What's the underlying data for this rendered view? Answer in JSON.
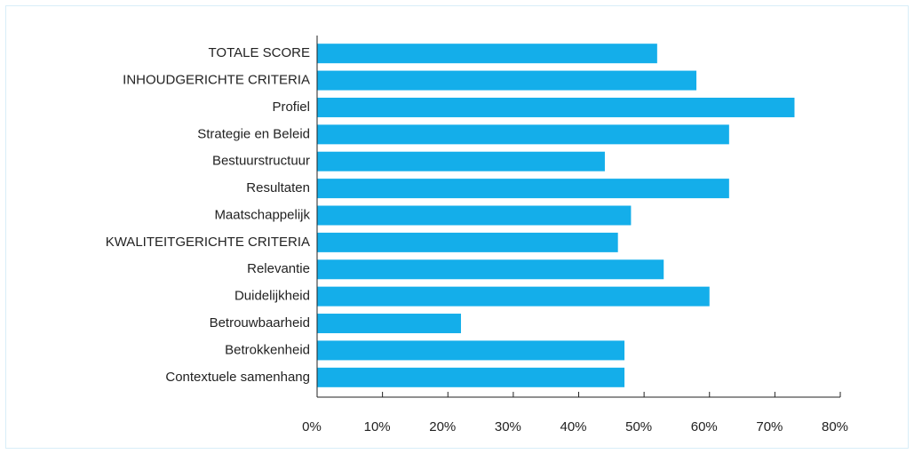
{
  "chart_data": {
    "type": "bar",
    "orientation": "horizontal",
    "categories": [
      "TOTALE SCORE",
      "INHOUDGERICHTE CRITERIA",
      "Profiel",
      "Strategie en Beleid",
      "Bestuurstructuur",
      "Resultaten",
      "Maatschappelijk",
      "KWALITEITGERICHTE CRITERIA",
      "Relevantie",
      "Duidelijkheid",
      "Betrouwbaarheid",
      "Betrokkenheid",
      "Contextuele samenhang"
    ],
    "values": [
      52,
      58,
      73,
      63,
      44,
      63,
      48,
      46,
      53,
      60,
      22,
      47,
      47
    ],
    "color": "#14aeea",
    "xlim": [
      0,
      80
    ],
    "xticks": [
      {
        "value": 0,
        "label": "0%"
      },
      {
        "value": 10,
        "label": "10%"
      },
      {
        "value": 20,
        "label": "20%"
      },
      {
        "value": 30,
        "label": "30%"
      },
      {
        "value": 40,
        "label": "40%"
      },
      {
        "value": 50,
        "label": "50%"
      },
      {
        "value": 60,
        "label": "60%"
      },
      {
        "value": 70,
        "label": "70%"
      },
      {
        "value": 80,
        "label": "80%"
      }
    ]
  }
}
